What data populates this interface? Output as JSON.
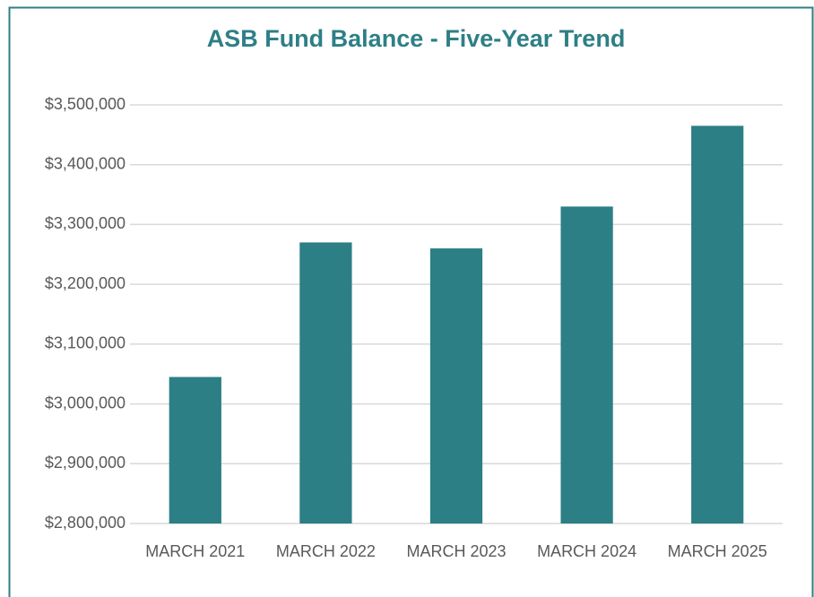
{
  "chart_data": {
    "type": "bar",
    "title": "ASB Fund Balance - Five-Year Trend",
    "categories": [
      "MARCH 2021",
      "MARCH 2022",
      "MARCH 2023",
      "MARCH 2024",
      "MARCH 2025"
    ],
    "values": [
      3045000,
      3270000,
      3260000,
      3330000,
      3465000
    ],
    "color": "#2b7f85",
    "ylim": [
      2800000,
      3500000
    ],
    "yticks": [
      {
        "value": 2800000,
        "label": "$2,800,000"
      },
      {
        "value": 2900000,
        "label": "$2,900,000"
      },
      {
        "value": 3000000,
        "label": "$3,000,000"
      },
      {
        "value": 3100000,
        "label": "$3,100,000"
      },
      {
        "value": 3200000,
        "label": "$3,200,000"
      },
      {
        "value": 3300000,
        "label": "$3,300,000"
      },
      {
        "value": 3400000,
        "label": "$3,400,000"
      },
      {
        "value": 3500000,
        "label": "$3,500,000"
      }
    ],
    "grid": true
  }
}
